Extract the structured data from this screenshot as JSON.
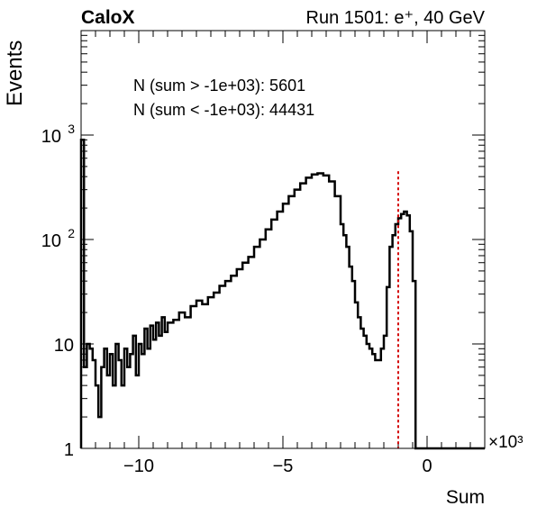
{
  "chart_data": {
    "type": "line",
    "style": "step histogram",
    "title_left": "CaloX",
    "title_right": "Run 1501: e⁺, 40 GeV",
    "xlabel": "Sum",
    "ylabel": "Events",
    "x_exponent_label": "×10³",
    "xlim": [
      -12,
      2
    ],
    "ylim": [
      1,
      10000
    ],
    "yscale": "log",
    "x_ticks": [
      -10,
      -5,
      0
    ],
    "x_tick_labels": [
      "−10",
      "−5",
      "0"
    ],
    "y_ticks": [
      1,
      10,
      100,
      1000
    ],
    "y_tick_labels": [
      "1",
      "10",
      "10²",
      "10³"
    ],
    "grid": false,
    "annotations": [
      "N (sum > -1e+03): 5601",
      "N (sum < -1e+03): 44431"
    ],
    "cut_line": {
      "x": -1.0,
      "color": "#d40000",
      "style": "dashed"
    },
    "series": [
      {
        "color": "#000000",
        "x": [
          -12.0,
          -11.9,
          -11.8,
          -11.7,
          -11.6,
          -11.5,
          -11.4,
          -11.3,
          -11.2,
          -11.1,
          -11.0,
          -10.9,
          -10.8,
          -10.7,
          -10.6,
          -10.5,
          -10.4,
          -10.3,
          -10.2,
          -10.1,
          -10.0,
          -9.9,
          -9.8,
          -9.7,
          -9.6,
          -9.5,
          -9.4,
          -9.3,
          -9.2,
          -9.1,
          -9.0,
          -8.8,
          -8.6,
          -8.4,
          -8.2,
          -8.0,
          -7.8,
          -7.6,
          -7.4,
          -7.2,
          -7.0,
          -6.8,
          -6.6,
          -6.4,
          -6.2,
          -6.0,
          -5.8,
          -5.6,
          -5.4,
          -5.2,
          -5.0,
          -4.8,
          -4.6,
          -4.4,
          -4.2,
          -4.0,
          -3.8,
          -3.6,
          -3.4,
          -3.2,
          -3.0,
          -2.9,
          -2.8,
          -2.7,
          -2.6,
          -2.5,
          -2.4,
          -2.3,
          -2.2,
          -2.1,
          -2.0,
          -1.9,
          -1.8,
          -1.7,
          -1.6,
          -1.5,
          -1.4,
          -1.3,
          -1.2,
          -1.1,
          -1.0,
          -0.9,
          -0.8,
          -0.7,
          -0.6,
          -0.5,
          -0.4,
          -0.3,
          -0.2,
          -0.1,
          0.0,
          0.1,
          0.2,
          0.3,
          0.4,
          0.5,
          0.6,
          0.7,
          0.8,
          0.9,
          1.0,
          1.2,
          1.4,
          1.6,
          1.8,
          2.0
        ],
        "values": [
          900,
          6,
          10,
          9,
          7,
          4,
          2,
          6,
          9,
          5,
          8,
          4,
          10,
          7,
          4,
          9,
          6,
          8,
          12,
          5,
          10,
          8,
          14,
          9,
          15,
          11,
          16,
          12,
          18,
          13,
          16,
          17,
          20,
          18,
          23,
          26,
          24,
          28,
          31,
          36,
          40,
          45,
          52,
          60,
          68,
          85,
          100,
          125,
          155,
          185,
          220,
          260,
          300,
          345,
          390,
          420,
          430,
          410,
          360,
          260,
          140,
          110,
          85,
          55,
          40,
          25,
          18,
          14,
          12,
          10,
          9,
          8,
          7,
          7,
          9,
          12,
          35,
          85,
          110,
          140,
          160,
          175,
          185,
          170,
          120,
          40,
          1,
          1,
          1,
          1,
          1,
          1,
          1,
          1,
          1,
          1,
          1,
          1,
          1,
          1,
          1,
          1,
          1,
          1,
          1,
          1
        ]
      }
    ]
  }
}
